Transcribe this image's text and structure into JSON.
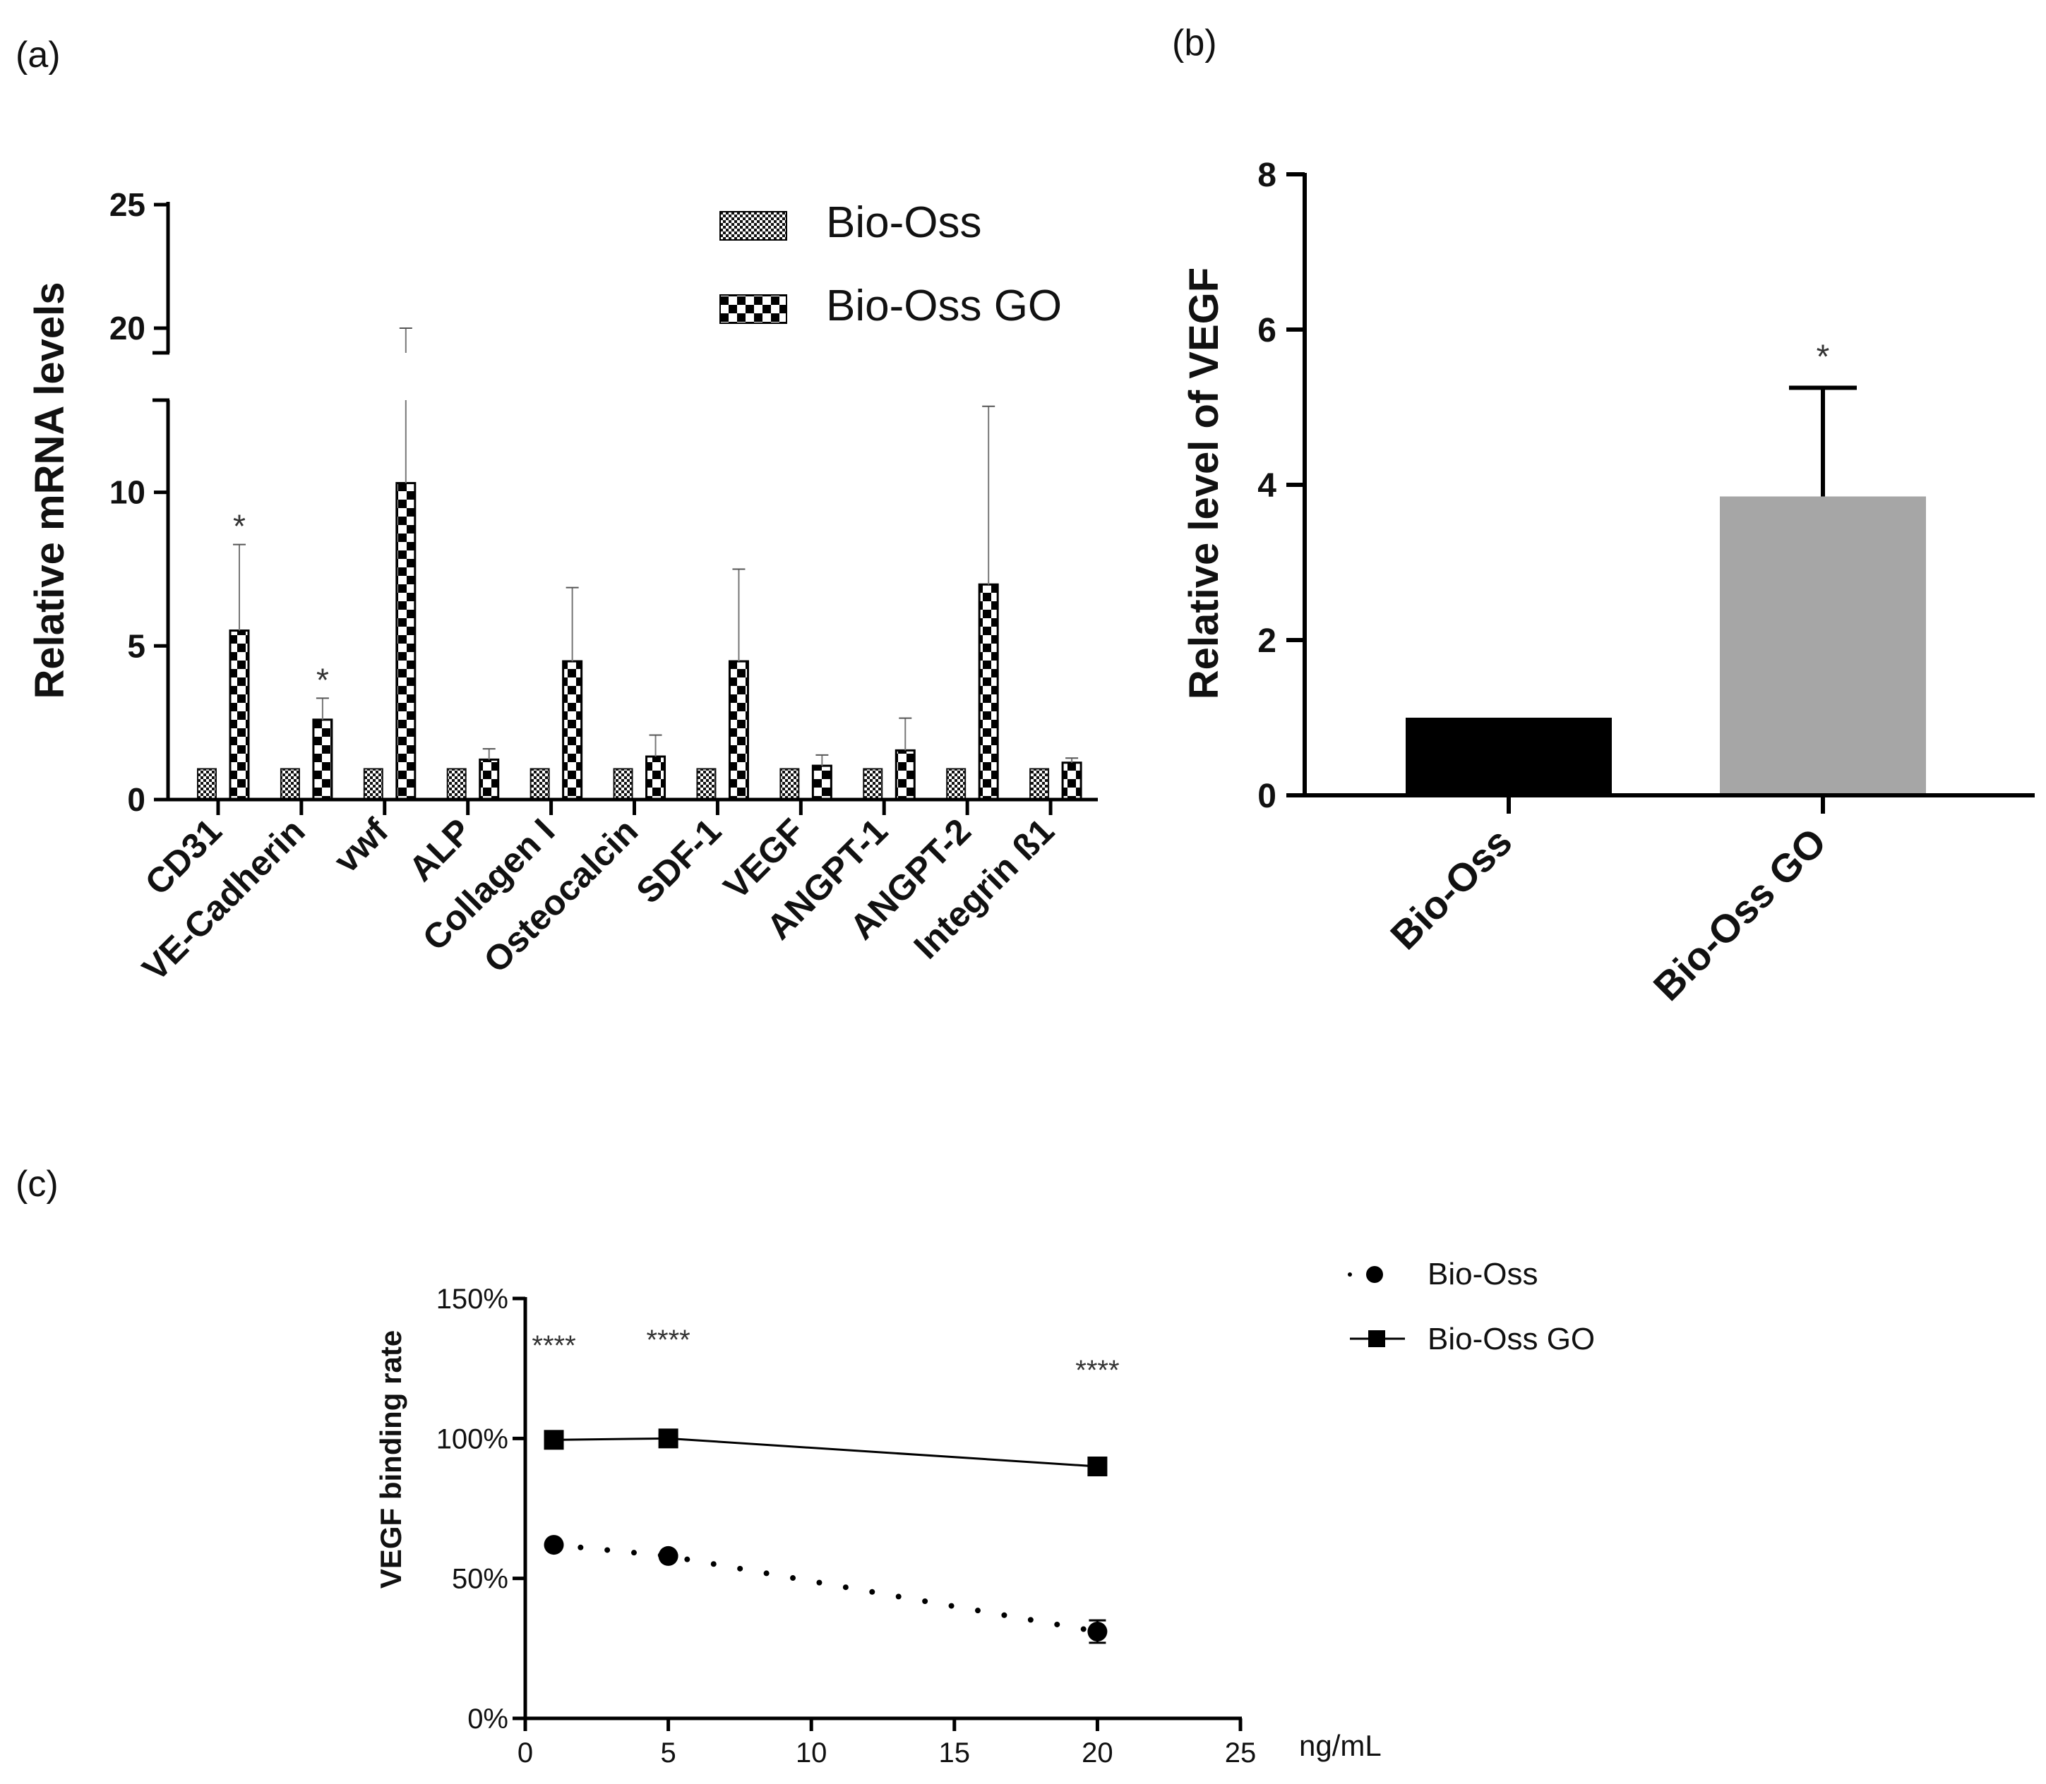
{
  "chart_data": [
    {
      "id": "a",
      "panel_label": "(a)",
      "type": "bar",
      "ylabel": "Relative mRNA levels",
      "ylim": [
        0,
        25
      ],
      "axis_break": [
        13,
        19
      ],
      "yticks": [
        "0",
        "5",
        "10",
        "20",
        "25"
      ],
      "categories": [
        "CD31",
        "VE-Cadherin",
        "vwf",
        "ALP",
        "Collagen I",
        "Osteocalcin",
        "SDF-1",
        "VEGF",
        "ANGPT-1",
        "ANGPT-2",
        "Integrin ß1"
      ],
      "series": [
        {
          "name": "Bio-Oss",
          "pattern": "fine-checker",
          "values": [
            1,
            1,
            1,
            1,
            1,
            1,
            1,
            1,
            1,
            1,
            1
          ]
        },
        {
          "name": "Bio-Oss GO",
          "pattern": "coarse-checker",
          "values": [
            5.5,
            2.6,
            10.3,
            1.3,
            4.5,
            1.4,
            4.5,
            1.1,
            1.6,
            7.0,
            1.2
          ],
          "error": [
            2.8,
            0.7,
            9.7,
            0.35,
            2.4,
            0.7,
            3.0,
            0.35,
            1.05,
            5.8,
            0.15
          ]
        }
      ],
      "annotations": [
        {
          "category": "CD31",
          "text": "*"
        },
        {
          "category": "VE-Cadherin",
          "text": "*"
        }
      ],
      "legend": {
        "position": "top-right",
        "entries": [
          "Bio-Oss",
          "Bio-Oss GO"
        ]
      }
    },
    {
      "id": "b",
      "panel_label": "(b)",
      "type": "bar",
      "ylabel": "Relative level of VEGF",
      "ylim": [
        0,
        8
      ],
      "yticks": [
        "0",
        "2",
        "4",
        "6",
        "8"
      ],
      "categories": [
        "Bio-Oss",
        "Bio-Oss GO"
      ],
      "values": [
        1.0,
        3.85
      ],
      "error": [
        0,
        1.4
      ],
      "colors": [
        "#000000",
        "#a6a6a6"
      ],
      "annotations": [
        {
          "category": "Bio-Oss GO",
          "text": "*"
        }
      ]
    },
    {
      "id": "c",
      "panel_label": "(c)",
      "type": "line",
      "ylabel": "VEGF binding rate",
      "xlabel": "ng/mL",
      "xlim": [
        0,
        25
      ],
      "ylim": [
        0,
        150
      ],
      "xticks": [
        "0",
        "5",
        "10",
        "15",
        "20",
        "25"
      ],
      "yticks": [
        "0%",
        "50%",
        "100%",
        "150%"
      ],
      "series": [
        {
          "name": "Bio-Oss",
          "marker": "circle",
          "line": "dotted",
          "x": [
            1,
            5,
            20
          ],
          "y": [
            62,
            58,
            31
          ],
          "error": [
            0,
            0,
            4
          ]
        },
        {
          "name": "Bio-Oss GO",
          "marker": "square",
          "line": "solid",
          "x": [
            1,
            5,
            20
          ],
          "y": [
            99.5,
            100,
            90
          ],
          "error": [
            0,
            0,
            0
          ]
        }
      ],
      "annotations": [
        {
          "x": 1,
          "text": "****"
        },
        {
          "x": 5,
          "text": "****"
        },
        {
          "x": 20,
          "text": "****"
        }
      ],
      "legend": {
        "position": "right",
        "entries": [
          "Bio-Oss",
          "Bio-Oss GO"
        ]
      }
    }
  ]
}
